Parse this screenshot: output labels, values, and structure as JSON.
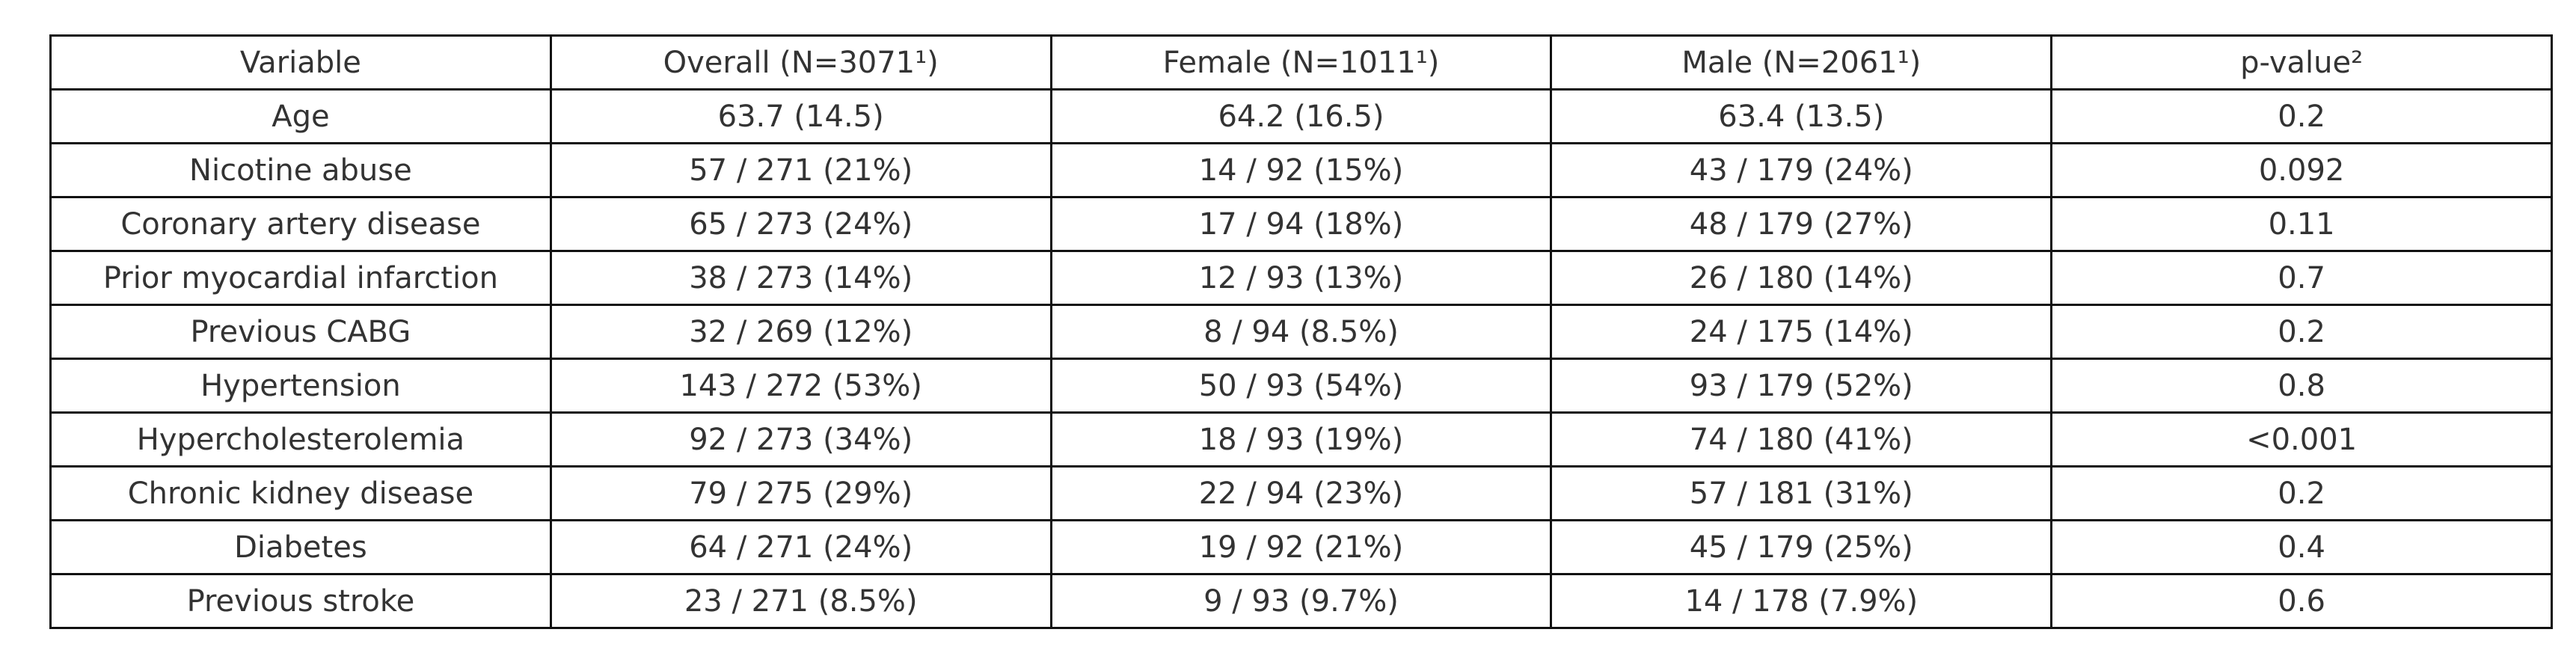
{
  "table": {
    "header": [
      "Variable",
      "Overall (N=3071¹)",
      "Female (N=1011¹)",
      "Male (N=2061¹)",
      "p-value²"
    ],
    "rows": [
      [
        "Age",
        "63.7 (14.5)",
        "64.2 (16.5)",
        "63.4 (13.5)",
        "0.2"
      ],
      [
        "Nicotine abuse",
        "57 / 271 (21%)",
        "14 / 92 (15%)",
        "43 / 179 (24%)",
        "0.092"
      ],
      [
        "Coronary artery disease",
        "65 / 273 (24%)",
        "17 / 94 (18%)",
        "48 / 179 (27%)",
        "0.11"
      ],
      [
        "Prior myocardial infarction",
        "38 / 273 (14%)",
        "12 / 93 (13%)",
        "26 / 180 (14%)",
        "0.7"
      ],
      [
        "Previous CABG",
        "32 / 269 (12%)",
        "8 / 94 (8.5%)",
        "24 / 175 (14%)",
        "0.2"
      ],
      [
        "Hypertension",
        "143 / 272 (53%)",
        "50 / 93 (54%)",
        "93 / 179 (52%)",
        "0.8"
      ],
      [
        "Hypercholesterolemia",
        "92 / 273 (34%)",
        "18 / 93 (19%)",
        "74 / 180 (41%)",
        "<0.001"
      ],
      [
        "Chronic kidney disease",
        "79 / 275 (29%)",
        "22 / 94 (23%)",
        "57 / 181 (31%)",
        "0.2"
      ],
      [
        "Diabetes",
        "64 / 271 (24%)",
        "19 / 92 (21%)",
        "45 / 179 (25%)",
        "0.4"
      ],
      [
        "Previous stroke",
        "23 / 271 (8.5%)",
        "9 / 93 (9.7%)",
        "14 / 178 (7.9%)",
        "0.6"
      ]
    ]
  }
}
